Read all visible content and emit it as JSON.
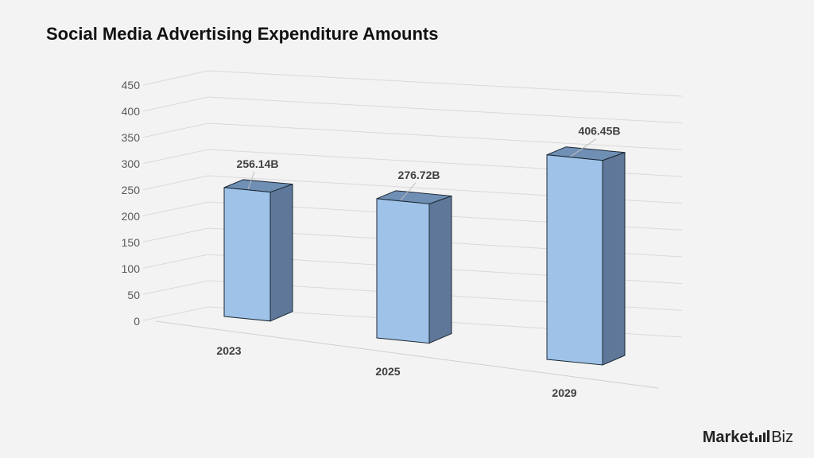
{
  "chart_data": {
    "type": "bar",
    "title": "Social Media Advertising Expenditure Amounts",
    "categories": [
      "2023",
      "2025",
      "2029"
    ],
    "values": [
      256.14,
      276.72,
      406.45
    ],
    "data_labels": [
      "256.14B",
      "276.72B",
      "406.45B"
    ],
    "ylim": [
      0,
      450
    ],
    "yticks": [
      "0",
      "50",
      "100",
      "150",
      "200",
      "250",
      "300",
      "350",
      "400",
      "450"
    ],
    "grid": true,
    "style": "3d-column",
    "colors": {
      "front": "#9fc3e8",
      "side": "#5f7899",
      "top": "#6f8fb4",
      "edge": "#1b2733"
    }
  },
  "brand": {
    "part1": "Market",
    "part2": "Biz"
  }
}
